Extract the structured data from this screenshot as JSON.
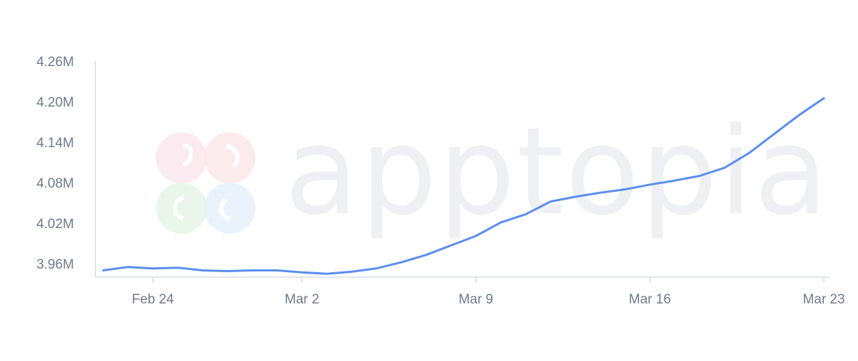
{
  "watermark": {
    "text": "apptopia"
  },
  "chart_data": {
    "type": "line",
    "title": "",
    "xlabel": "",
    "ylabel": "",
    "ylim": [
      3.94,
      4.26
    ],
    "yticks": [
      3.96,
      4.02,
      4.08,
      4.14,
      4.2,
      4.26
    ],
    "ytick_labels": [
      "3.96M",
      "4.02M",
      "4.08M",
      "4.14M",
      "4.20M",
      "4.26M"
    ],
    "xlim": [
      "2025-02-22",
      "2025-03-23"
    ],
    "xtick_labels": [
      "Feb 24",
      "Mar 2",
      "Mar 9",
      "Mar 16",
      "Mar 23"
    ],
    "xtick_dates": [
      "2025-02-24",
      "2025-03-02",
      "2025-03-09",
      "2025-03-16",
      "2025-03-23"
    ],
    "grid": false,
    "legend": "none",
    "series": [
      {
        "color": "#5b8def",
        "x": [
          "2025-02-22",
          "2025-02-23",
          "2025-02-24",
          "2025-02-25",
          "2025-02-26",
          "2025-02-27",
          "2025-02-28",
          "2025-03-01",
          "2025-03-02",
          "2025-03-03",
          "2025-03-04",
          "2025-03-05",
          "2025-03-06",
          "2025-03-07",
          "2025-03-08",
          "2025-03-09",
          "2025-03-10",
          "2025-03-11",
          "2025-03-12",
          "2025-03-13",
          "2025-03-14",
          "2025-03-15",
          "2025-03-16",
          "2025-03-17",
          "2025-03-18",
          "2025-03-19",
          "2025-03-20",
          "2025-03-21",
          "2025-03-22",
          "2025-03-23"
        ],
        "values": [
          3.95,
          3.955,
          3.953,
          3.954,
          3.95,
          3.949,
          3.95,
          3.95,
          3.947,
          3.945,
          3.948,
          3.953,
          3.962,
          3.973,
          3.987,
          4.001,
          4.021,
          4.033,
          4.052,
          4.059,
          4.065,
          4.07,
          4.077,
          4.083,
          4.09,
          4.102,
          4.124,
          4.152,
          4.18,
          4.205
        ]
      }
    ]
  }
}
